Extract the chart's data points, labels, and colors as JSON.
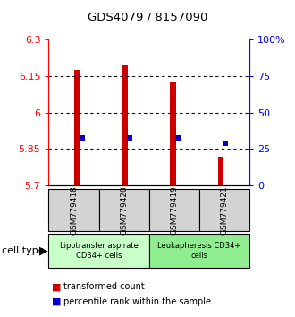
{
  "title": "GDS4079 / 8157090",
  "samples": [
    "GSM779418",
    "GSM779420",
    "GSM779419",
    "GSM779421"
  ],
  "bar_values": [
    6.175,
    6.195,
    6.125,
    5.82
  ],
  "bar_bottom": 5.7,
  "bar_color": "#cc0000",
  "blue_values": [
    5.895,
    5.895,
    5.895,
    5.875
  ],
  "blue_color": "#0000cc",
  "ylim_left": [
    5.7,
    6.3
  ],
  "ylim_right": [
    0,
    100
  ],
  "yticks_left": [
    5.7,
    5.85,
    6.0,
    6.15,
    6.3
  ],
  "yticks_right": [
    0,
    25,
    50,
    75,
    100
  ],
  "ytick_labels_left": [
    "5.7",
    "5.85",
    "6",
    "6.15",
    "6.3"
  ],
  "ytick_labels_right": [
    "0",
    "25",
    "50",
    "75",
    "100%"
  ],
  "hlines": [
    5.85,
    6.0,
    6.15
  ],
  "group1_label": "Lipotransfer aspirate\nCD34+ cells",
  "group2_label": "Leukapheresis CD34+\ncells",
  "group1_color": "#c8ffc8",
  "group2_color": "#90ee90",
  "cell_type_label": "cell type",
  "legend_red_label": "transformed count",
  "legend_blue_label": "percentile rank within the sample",
  "bar_width": 0.12,
  "bar_edge_color": "#cc0000",
  "sample_box_color": "#d3d3d3"
}
